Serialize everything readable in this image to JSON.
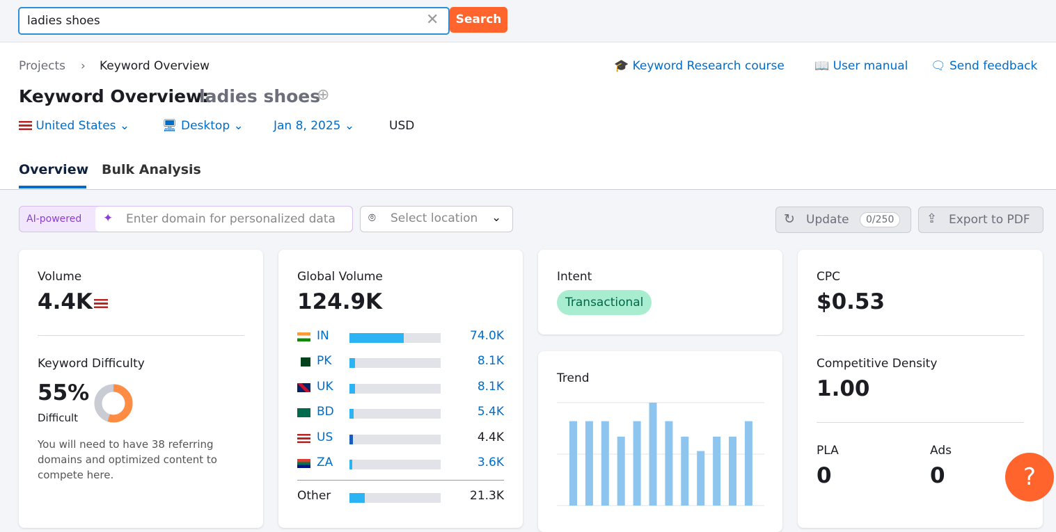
{
  "search": {
    "query": "ladies shoes",
    "button": "Search"
  },
  "breadcrumb": [
    "Projects",
    "Keyword Overview"
  ],
  "links": [
    "Keyword Research course",
    "User manual",
    "Send feedback"
  ],
  "title": {
    "label": "Keyword Overview:",
    "keyword": "ladies shoes"
  },
  "filters": {
    "country": "United States",
    "device": "Desktop",
    "date": "Jan 8, 2025",
    "currency": "USD"
  },
  "tabs": [
    "Overview",
    "Bulk Analysis"
  ],
  "toolbar": {
    "ai_badge": "AI-powered",
    "domain_placeholder": "Enter domain for personalized data",
    "location_placeholder": "Select location",
    "update": "Update",
    "update_count": "0/250",
    "export": "Export to PDF"
  },
  "volume": {
    "label": "Volume",
    "value": "4.4K"
  },
  "keyword_difficulty": {
    "label": "Keyword Difficulty",
    "value": 55,
    "value_label": "55%",
    "level": "Difficult",
    "note": "You will need to have 38 referring domains and optimized content to compete here."
  },
  "global_volume": {
    "label": "Global Volume",
    "value": 124900,
    "value_label": "124.9K",
    "countries": [
      {
        "code": "IN",
        "value": 74000,
        "value_label": "74.0K"
      },
      {
        "code": "PK",
        "value": 8100,
        "value_label": "8.1K"
      },
      {
        "code": "UK",
        "value": 8100,
        "value_label": "8.1K"
      },
      {
        "code": "BD",
        "value": 5400,
        "value_label": "5.4K"
      },
      {
        "code": "US",
        "value": 4400,
        "value_label": "4.4K"
      },
      {
        "code": "ZA",
        "value": 3600,
        "value_label": "3.6K"
      }
    ],
    "other": {
      "label": "Other",
      "value": 21300,
      "value_label": "21.3K"
    }
  },
  "intent": {
    "label": "Intent",
    "value": "Transactional"
  },
  "trend": {
    "label": "Trend",
    "values": [
      82,
      82,
      82,
      67,
      82,
      100,
      82,
      67,
      53,
      67,
      67,
      82
    ]
  },
  "cpc": {
    "label": "CPC",
    "value": "$0.53"
  },
  "competitive_density": {
    "label": "Competitive Density",
    "value": "1.00"
  },
  "pla": {
    "label": "PLA",
    "value": "0"
  },
  "ads": {
    "label": "Ads",
    "value": "0"
  },
  "help": "?"
}
